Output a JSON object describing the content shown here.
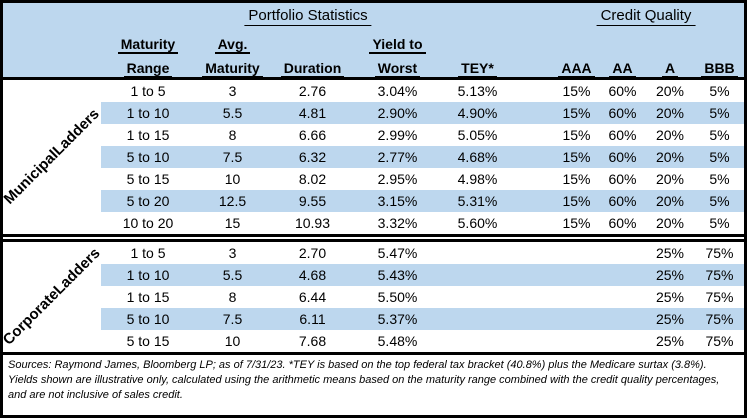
{
  "header": {
    "portfolio_title": "Portfolio Statistics",
    "credit_title": "Credit Quality",
    "col_line1": [
      "Maturity",
      "Avg.",
      "",
      "Yield to",
      "",
      "",
      "",
      "",
      ""
    ],
    "col_line2": [
      "Range",
      "Maturity",
      "Duration",
      "Worst",
      "TEY*",
      "AAA",
      "AA",
      "A",
      "BBB"
    ]
  },
  "sections": [
    {
      "label_line1": "Municipal",
      "label_line2": "Ladders",
      "rows": [
        {
          "range": "1 to 5",
          "avg_maturity": "3",
          "duration": "2.76",
          "yield_to_worst": "3.04%",
          "tey": "5.13%",
          "aaa": "15%",
          "aa": "60%",
          "a": "20%",
          "bbb": "5%"
        },
        {
          "range": "1 to 10",
          "avg_maturity": "5.5",
          "duration": "4.81",
          "yield_to_worst": "2.90%",
          "tey": "4.90%",
          "aaa": "15%",
          "aa": "60%",
          "a": "20%",
          "bbb": "5%"
        },
        {
          "range": "1 to 15",
          "avg_maturity": "8",
          "duration": "6.66",
          "yield_to_worst": "2.99%",
          "tey": "5.05%",
          "aaa": "15%",
          "aa": "60%",
          "a": "20%",
          "bbb": "5%"
        },
        {
          "range": "5 to 10",
          "avg_maturity": "7.5",
          "duration": "6.32",
          "yield_to_worst": "2.77%",
          "tey": "4.68%",
          "aaa": "15%",
          "aa": "60%",
          "a": "20%",
          "bbb": "5%"
        },
        {
          "range": "5 to 15",
          "avg_maturity": "10",
          "duration": "8.02",
          "yield_to_worst": "2.95%",
          "tey": "4.98%",
          "aaa": "15%",
          "aa": "60%",
          "a": "20%",
          "bbb": "5%"
        },
        {
          "range": "5 to 20",
          "avg_maturity": "12.5",
          "duration": "9.55",
          "yield_to_worst": "3.15%",
          "tey": "5.31%",
          "aaa": "15%",
          "aa": "60%",
          "a": "20%",
          "bbb": "5%"
        },
        {
          "range": "10 to 20",
          "avg_maturity": "15",
          "duration": "10.93",
          "yield_to_worst": "3.32%",
          "tey": "5.60%",
          "aaa": "15%",
          "aa": "60%",
          "a": "20%",
          "bbb": "5%"
        }
      ]
    },
    {
      "label_line1": "Corporate",
      "label_line2": "Ladders",
      "rows": [
        {
          "range": "1 to 5",
          "avg_maturity": "3",
          "duration": "2.70",
          "yield_to_worst": "5.47%",
          "tey": "",
          "aaa": "",
          "aa": "",
          "a": "25%",
          "bbb": "75%"
        },
        {
          "range": "1 to 10",
          "avg_maturity": "5.5",
          "duration": "4.68",
          "yield_to_worst": "5.43%",
          "tey": "",
          "aaa": "",
          "aa": "",
          "a": "25%",
          "bbb": "75%"
        },
        {
          "range": "1 to 15",
          "avg_maturity": "8",
          "duration": "6.44",
          "yield_to_worst": "5.50%",
          "tey": "",
          "aaa": "",
          "aa": "",
          "a": "25%",
          "bbb": "75%"
        },
        {
          "range": "5 to 10",
          "avg_maturity": "7.5",
          "duration": "6.11",
          "yield_to_worst": "5.37%",
          "tey": "",
          "aaa": "",
          "aa": "",
          "a": "25%",
          "bbb": "75%"
        },
        {
          "range": "5 to 15",
          "avg_maturity": "10",
          "duration": "7.68",
          "yield_to_worst": "5.48%",
          "tey": "",
          "aaa": "",
          "aa": "",
          "a": "25%",
          "bbb": "75%"
        }
      ]
    }
  ],
  "footnote": "Sources: Raymond James, Bloomberg LP; as of 7/31/23. *TEY is based on the top federal tax bracket (40.8%) plus the Medicare surtax (3.8%). Yields shown are illustrative only, calculated using the arithmetic means based on the maturity range combined with the credit quality percentages, and are not inclusive of sales credit.",
  "colors": {
    "header_bg": "#bdd7ee",
    "stripe_bg": "#bdd7ee",
    "border": "#000000"
  }
}
